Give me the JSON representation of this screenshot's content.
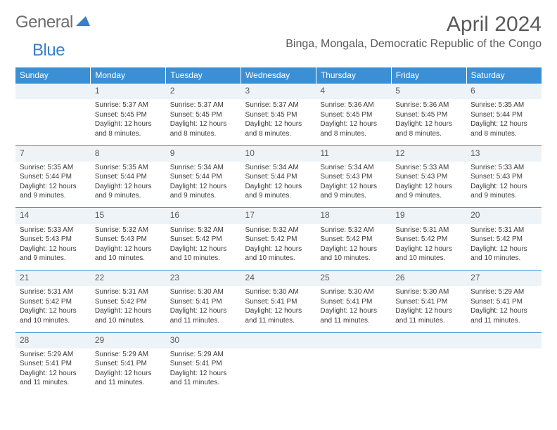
{
  "logo": {
    "part1": "General",
    "part2": "Blue"
  },
  "header": {
    "title": "April 2024",
    "location": "Binga, Mongala, Democratic Republic of the Congo"
  },
  "colors": {
    "header_bg": "#3b8fd4",
    "header_text": "#ffffff",
    "daynum_bg": "#eef3f8",
    "text": "#3a3a3a",
    "rule": "#3b8fd4",
    "logo_gray": "#6e6e6e",
    "logo_blue": "#3b7fc4"
  },
  "typography": {
    "title_fontsize": 30,
    "location_fontsize": 16,
    "dayheader_fontsize": 12,
    "daynum_fontsize": 12,
    "body_fontsize": 10
  },
  "dayHeaders": [
    "Sunday",
    "Monday",
    "Tuesday",
    "Wednesday",
    "Thursday",
    "Friday",
    "Saturday"
  ],
  "weeks": [
    [
      null,
      {
        "n": "1",
        "sr": "Sunrise: 5:37 AM",
        "ss": "Sunset: 5:45 PM",
        "dl": "Daylight: 12 hours and 8 minutes."
      },
      {
        "n": "2",
        "sr": "Sunrise: 5:37 AM",
        "ss": "Sunset: 5:45 PM",
        "dl": "Daylight: 12 hours and 8 minutes."
      },
      {
        "n": "3",
        "sr": "Sunrise: 5:37 AM",
        "ss": "Sunset: 5:45 PM",
        "dl": "Daylight: 12 hours and 8 minutes."
      },
      {
        "n": "4",
        "sr": "Sunrise: 5:36 AM",
        "ss": "Sunset: 5:45 PM",
        "dl": "Daylight: 12 hours and 8 minutes."
      },
      {
        "n": "5",
        "sr": "Sunrise: 5:36 AM",
        "ss": "Sunset: 5:45 PM",
        "dl": "Daylight: 12 hours and 8 minutes."
      },
      {
        "n": "6",
        "sr": "Sunrise: 5:35 AM",
        "ss": "Sunset: 5:44 PM",
        "dl": "Daylight: 12 hours and 8 minutes."
      }
    ],
    [
      {
        "n": "7",
        "sr": "Sunrise: 5:35 AM",
        "ss": "Sunset: 5:44 PM",
        "dl": "Daylight: 12 hours and 9 minutes."
      },
      {
        "n": "8",
        "sr": "Sunrise: 5:35 AM",
        "ss": "Sunset: 5:44 PM",
        "dl": "Daylight: 12 hours and 9 minutes."
      },
      {
        "n": "9",
        "sr": "Sunrise: 5:34 AM",
        "ss": "Sunset: 5:44 PM",
        "dl": "Daylight: 12 hours and 9 minutes."
      },
      {
        "n": "10",
        "sr": "Sunrise: 5:34 AM",
        "ss": "Sunset: 5:44 PM",
        "dl": "Daylight: 12 hours and 9 minutes."
      },
      {
        "n": "11",
        "sr": "Sunrise: 5:34 AM",
        "ss": "Sunset: 5:43 PM",
        "dl": "Daylight: 12 hours and 9 minutes."
      },
      {
        "n": "12",
        "sr": "Sunrise: 5:33 AM",
        "ss": "Sunset: 5:43 PM",
        "dl": "Daylight: 12 hours and 9 minutes."
      },
      {
        "n": "13",
        "sr": "Sunrise: 5:33 AM",
        "ss": "Sunset: 5:43 PM",
        "dl": "Daylight: 12 hours and 9 minutes."
      }
    ],
    [
      {
        "n": "14",
        "sr": "Sunrise: 5:33 AM",
        "ss": "Sunset: 5:43 PM",
        "dl": "Daylight: 12 hours and 9 minutes."
      },
      {
        "n": "15",
        "sr": "Sunrise: 5:32 AM",
        "ss": "Sunset: 5:43 PM",
        "dl": "Daylight: 12 hours and 10 minutes."
      },
      {
        "n": "16",
        "sr": "Sunrise: 5:32 AM",
        "ss": "Sunset: 5:42 PM",
        "dl": "Daylight: 12 hours and 10 minutes."
      },
      {
        "n": "17",
        "sr": "Sunrise: 5:32 AM",
        "ss": "Sunset: 5:42 PM",
        "dl": "Daylight: 12 hours and 10 minutes."
      },
      {
        "n": "18",
        "sr": "Sunrise: 5:32 AM",
        "ss": "Sunset: 5:42 PM",
        "dl": "Daylight: 12 hours and 10 minutes."
      },
      {
        "n": "19",
        "sr": "Sunrise: 5:31 AM",
        "ss": "Sunset: 5:42 PM",
        "dl": "Daylight: 12 hours and 10 minutes."
      },
      {
        "n": "20",
        "sr": "Sunrise: 5:31 AM",
        "ss": "Sunset: 5:42 PM",
        "dl": "Daylight: 12 hours and 10 minutes."
      }
    ],
    [
      {
        "n": "21",
        "sr": "Sunrise: 5:31 AM",
        "ss": "Sunset: 5:42 PM",
        "dl": "Daylight: 12 hours and 10 minutes."
      },
      {
        "n": "22",
        "sr": "Sunrise: 5:31 AM",
        "ss": "Sunset: 5:42 PM",
        "dl": "Daylight: 12 hours and 10 minutes."
      },
      {
        "n": "23",
        "sr": "Sunrise: 5:30 AM",
        "ss": "Sunset: 5:41 PM",
        "dl": "Daylight: 12 hours and 11 minutes."
      },
      {
        "n": "24",
        "sr": "Sunrise: 5:30 AM",
        "ss": "Sunset: 5:41 PM",
        "dl": "Daylight: 12 hours and 11 minutes."
      },
      {
        "n": "25",
        "sr": "Sunrise: 5:30 AM",
        "ss": "Sunset: 5:41 PM",
        "dl": "Daylight: 12 hours and 11 minutes."
      },
      {
        "n": "26",
        "sr": "Sunrise: 5:30 AM",
        "ss": "Sunset: 5:41 PM",
        "dl": "Daylight: 12 hours and 11 minutes."
      },
      {
        "n": "27",
        "sr": "Sunrise: 5:29 AM",
        "ss": "Sunset: 5:41 PM",
        "dl": "Daylight: 12 hours and 11 minutes."
      }
    ],
    [
      {
        "n": "28",
        "sr": "Sunrise: 5:29 AM",
        "ss": "Sunset: 5:41 PM",
        "dl": "Daylight: 12 hours and 11 minutes."
      },
      {
        "n": "29",
        "sr": "Sunrise: 5:29 AM",
        "ss": "Sunset: 5:41 PM",
        "dl": "Daylight: 12 hours and 11 minutes."
      },
      {
        "n": "30",
        "sr": "Sunrise: 5:29 AM",
        "ss": "Sunset: 5:41 PM",
        "dl": "Daylight: 12 hours and 11 minutes."
      },
      null,
      null,
      null,
      null
    ]
  ]
}
